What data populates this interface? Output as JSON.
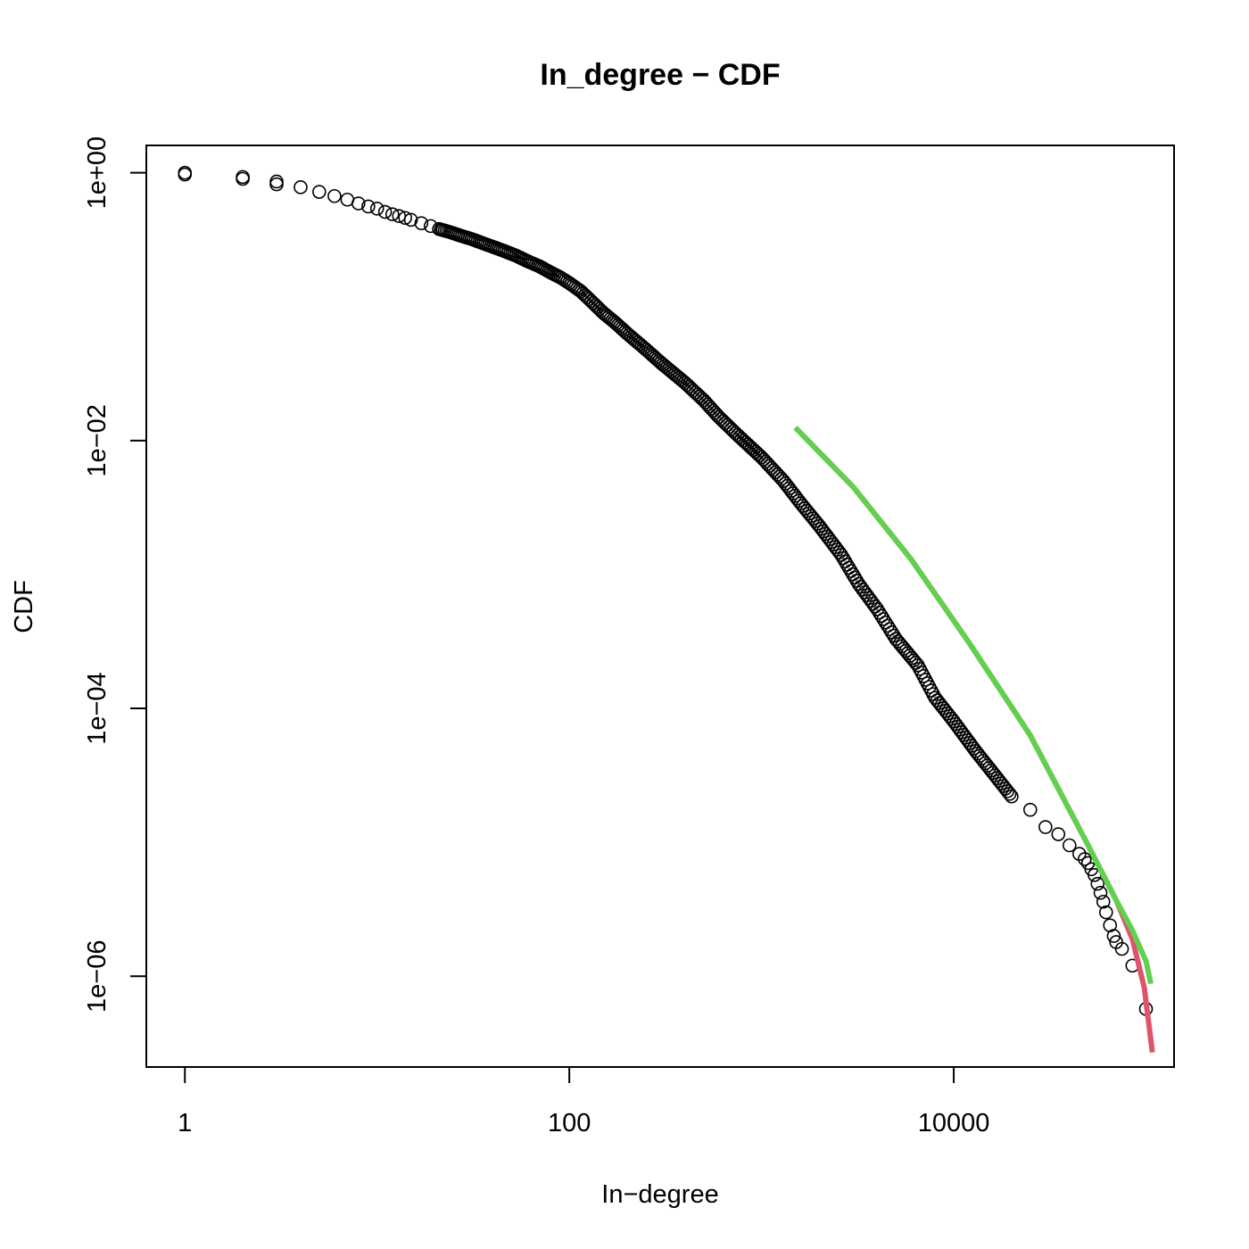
{
  "chart_data": {
    "type": "scatter",
    "title": "In_degree − CDF",
    "xlabel": "In−degree",
    "ylabel": "CDF",
    "x_scale": "log",
    "y_scale": "log",
    "xlim": [
      0.63,
      140000
    ],
    "ylim": [
      2.1e-07,
      1.6
    ],
    "x_ticks": [
      1,
      100,
      10000
    ],
    "x_tick_labels": [
      "1",
      "100",
      "10000"
    ],
    "y_ticks": [
      1,
      0.01,
      0.0001,
      1e-06
    ],
    "y_tick_labels": [
      "1e+00",
      "1e−02",
      "1e−04",
      "1e−06"
    ],
    "grid": false,
    "legend": "none",
    "colors": {
      "points": "#000000",
      "fit_green": "#61d04f",
      "fit_red": "#df536b"
    },
    "series": [
      {
        "kind": "points",
        "x": [
          1,
          1,
          2,
          2,
          3,
          3,
          4,
          5,
          6,
          7,
          8,
          9,
          10,
          11,
          12,
          13,
          14,
          15,
          17,
          19,
          21,
          24,
          27,
          31,
          35,
          40,
          46,
          53,
          60,
          70,
          80,
          90,
          100,
          115,
          130,
          150,
          175,
          200,
          250,
          300,
          400,
          500,
          600,
          750,
          1000,
          1300,
          1600,
          2000,
          2600,
          3200,
          4000,
          5000,
          6500,
          8000,
          10000,
          13000,
          16000,
          20000,
          25000,
          30000,
          35000,
          40000,
          45000,
          48000,
          50000,
          52000,
          54000,
          56000,
          58000,
          60000,
          62000,
          65000,
          68000,
          70000,
          75000,
          85000,
          100000
        ],
        "y": [
          1.0,
          0.97,
          0.93,
          0.9,
          0.86,
          0.82,
          0.78,
          0.72,
          0.67,
          0.63,
          0.59,
          0.56,
          0.54,
          0.51,
          0.49,
          0.475,
          0.46,
          0.445,
          0.42,
          0.4,
          0.38,
          0.36,
          0.34,
          0.32,
          0.3,
          0.28,
          0.26,
          0.24,
          0.22,
          0.2,
          0.18,
          0.165,
          0.15,
          0.13,
          0.11,
          0.09,
          0.075,
          0.063,
          0.048,
          0.038,
          0.027,
          0.02,
          0.015,
          0.011,
          0.0075,
          0.005,
          0.0034,
          0.0023,
          0.0014,
          0.00085,
          0.00055,
          0.00033,
          0.00021,
          0.00012,
          8e-05,
          4.8e-05,
          3.3e-05,
          2.2e-05,
          1.75e-05,
          1.3e-05,
          1.15e-05,
          9.5e-06,
          8.2e-06,
          7.5e-06,
          7e-06,
          6.3e-06,
          5.7e-06,
          4.9e-06,
          4.2e-06,
          3.6e-06,
          3e-06,
          2.4e-06,
          2e-06,
          1.8e-06,
          1.6e-06,
          1.2e-06,
          5.7e-07
        ]
      },
      {
        "kind": "line",
        "color": "#df536b",
        "x": [
          1500,
          3000,
          6000,
          12000,
          25000,
          50000,
          70000,
          85000,
          98000,
          108000
        ],
        "y": [
          0.0125,
          0.0045,
          0.0013,
          0.00031,
          6.3e-05,
          9.5e-06,
          3.7e-06,
          1.9e-06,
          8.2e-07,
          2.7e-07
        ]
      },
      {
        "kind": "line",
        "color": "#61d04f",
        "x": [
          1500,
          3000,
          6000,
          12000,
          25000,
          50000,
          70000,
          85000,
          100000,
          106000
        ],
        "y": [
          0.0125,
          0.0045,
          0.0013,
          0.00031,
          6.3e-05,
          9.5e-06,
          3.7e-06,
          2.2e-06,
          1.3e-06,
          8.8e-07
        ]
      }
    ]
  }
}
